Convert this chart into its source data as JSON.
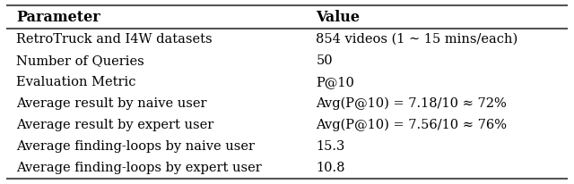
{
  "headers": [
    "Parameter",
    "Value"
  ],
  "rows": [
    [
      "RetroTruck and I4W datasets",
      "854 videos (1 ∼ 15 mins/each)"
    ],
    [
      "Number of Queries",
      "50"
    ],
    [
      "Evaluation Metric",
      "P@10"
    ],
    [
      "Average result by naive user",
      "Avg(P@10) = 7.18/10 ≈ 72%"
    ],
    [
      "Average result by expert user",
      "Avg(P@10) = 7.56/10 ≈ 76%"
    ],
    [
      "Average finding-loops by naive user",
      "15.3"
    ],
    [
      "Average finding-loops by expert user",
      "10.8"
    ]
  ],
  "col_split": 0.535,
  "bg_color": "#ffffff",
  "line_color": "#555555",
  "text_color": "#000000",
  "font_size": 10.5,
  "header_font_size": 11.5,
  "fig_width": 6.4,
  "fig_height": 2.06
}
